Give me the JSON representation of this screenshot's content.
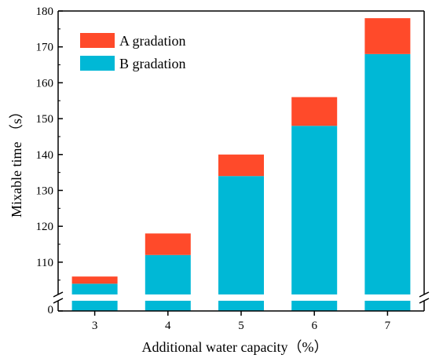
{
  "chart_data": {
    "type": "bar",
    "stacked": true,
    "categories": [
      "3",
      "4",
      "5",
      "6",
      "7"
    ],
    "series": [
      {
        "name": "B gradation",
        "color": "#00B8D6",
        "values": [
          104,
          112,
          134,
          148,
          168
        ]
      },
      {
        "name": "A gradation",
        "color": "#FF4A2A",
        "values": [
          2,
          6,
          6,
          8,
          10
        ]
      }
    ],
    "legend_order": [
      "A gradation",
      "B gradation"
    ],
    "legend_position": "top-left",
    "xlabel": "Additional water capacity（%）",
    "ylabel": "Mixable time （s）",
    "y_axis_break": true,
    "ylim_lower": [
      0,
      1
    ],
    "ylim_upper": [
      101,
      180
    ],
    "y_ticks_lower": [
      "0"
    ],
    "y_ticks_upper": [
      "110",
      "120",
      "130",
      "140",
      "150",
      "160",
      "170",
      "180"
    ],
    "grid": false
  }
}
